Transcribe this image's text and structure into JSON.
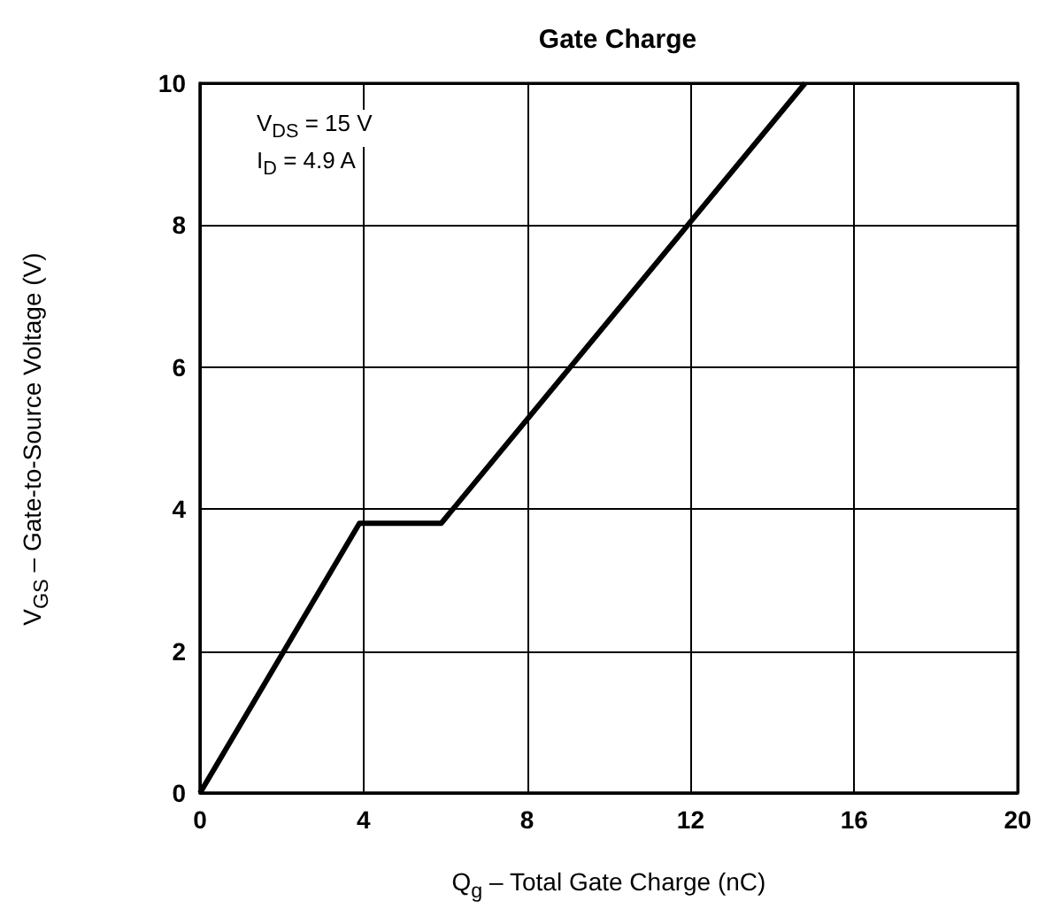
{
  "chart_data": {
    "type": "line",
    "title": "Gate Charge",
    "xlabel": "Q$_{g}$ – Total Gate Charge (nC)",
    "ylabel": "V$_{GS}$ – Gate-to-Source Voltage (V)",
    "annotations": [
      "V$_{DS}$ = 15 V",
      "I$_{D}$ = 4.9 A"
    ],
    "x": [
      0,
      3.9,
      5.9,
      14.8
    ],
    "series": [
      {
        "color": "#000000",
        "values": [
          0,
          3.8,
          3.8,
          10
        ]
      }
    ],
    "xlim": [
      0,
      20
    ],
    "xticks": [
      0,
      4,
      8,
      12,
      16,
      20
    ],
    "ylim": [
      0,
      10
    ],
    "yticks": [
      0,
      2,
      4,
      6,
      8,
      10
    ],
    "grid": true
  }
}
